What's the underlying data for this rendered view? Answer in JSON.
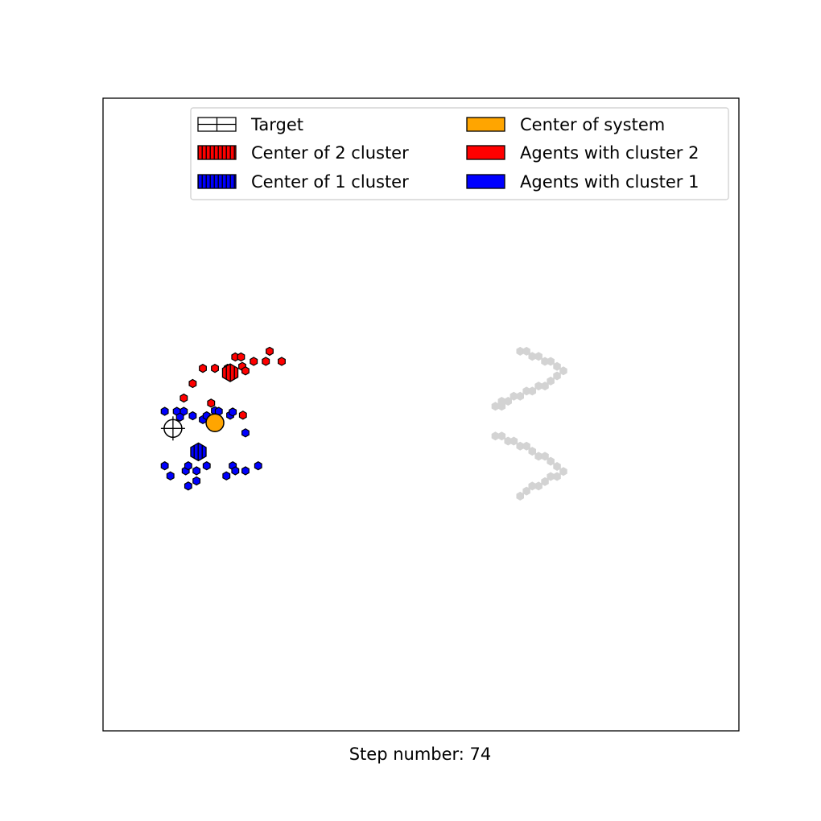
{
  "chart_data": {
    "type": "scatter",
    "title": "",
    "xlabel": "Step number: 74",
    "ylabel": "",
    "xlim": [
      0,
      100
    ],
    "ylim": [
      0,
      100
    ],
    "axis_ticks": "hidden",
    "grid": false,
    "legend_placement": "top-right",
    "legend": [
      {
        "label": "Target",
        "key": "target"
      },
      {
        "label": "Center of 2 cluster",
        "key": "center2"
      },
      {
        "label": "Center of 1 cluster",
        "key": "center1"
      },
      {
        "label": "Center of system",
        "key": "center_system"
      },
      {
        "label": "Agents with cluster 2",
        "key": "agents2"
      },
      {
        "label": "Agents with cluster 1",
        "key": "agents1"
      }
    ],
    "colors": {
      "cluster1": "#0000ff",
      "cluster2": "#ff0000",
      "center_system": "#ffa500",
      "obstacle": "#d3d3d3",
      "edge": "#000000"
    },
    "target": {
      "x": 11.0,
      "y": 47.8
    },
    "center_system": {
      "x": 17.6,
      "y": 48.7
    },
    "center_cluster_2": {
      "x": 20.0,
      "y": 56.6
    },
    "center_cluster_1": {
      "x": 15.0,
      "y": 44.1
    },
    "agents_cluster_2": [
      {
        "x": 26.2,
        "y": 60.0
      },
      {
        "x": 28.1,
        "y": 58.4
      },
      {
        "x": 20.8,
        "y": 59.1
      },
      {
        "x": 21.7,
        "y": 59.1
      },
      {
        "x": 25.6,
        "y": 58.4
      },
      {
        "x": 23.7,
        "y": 58.4
      },
      {
        "x": 21.9,
        "y": 57.6
      },
      {
        "x": 22.4,
        "y": 56.9
      },
      {
        "x": 17.6,
        "y": 57.3
      },
      {
        "x": 15.7,
        "y": 57.3
      },
      {
        "x": 19.6,
        "y": 57.3
      },
      {
        "x": 14.1,
        "y": 54.9
      },
      {
        "x": 12.7,
        "y": 52.6
      },
      {
        "x": 17.0,
        "y": 51.8
      },
      {
        "x": 22.0,
        "y": 49.9
      }
    ],
    "agents_cluster_1": [
      {
        "x": 9.7,
        "y": 50.5
      },
      {
        "x": 11.6,
        "y": 50.5
      },
      {
        "x": 12.7,
        "y": 50.5
      },
      {
        "x": 12.1,
        "y": 49.6
      },
      {
        "x": 14.1,
        "y": 49.8
      },
      {
        "x": 15.7,
        "y": 49.2
      },
      {
        "x": 16.3,
        "y": 49.8
      },
      {
        "x": 17.6,
        "y": 50.6
      },
      {
        "x": 18.2,
        "y": 50.5
      },
      {
        "x": 20.0,
        "y": 49.9
      },
      {
        "x": 20.4,
        "y": 50.4
      },
      {
        "x": 22.4,
        "y": 47.1
      },
      {
        "x": 9.7,
        "y": 41.9
      },
      {
        "x": 10.6,
        "y": 40.3
      },
      {
        "x": 13.0,
        "y": 41.1
      },
      {
        "x": 13.4,
        "y": 41.9
      },
      {
        "x": 14.7,
        "y": 41.1
      },
      {
        "x": 16.3,
        "y": 41.9
      },
      {
        "x": 14.7,
        "y": 39.5
      },
      {
        "x": 13.4,
        "y": 38.7
      },
      {
        "x": 20.4,
        "y": 41.9
      },
      {
        "x": 20.8,
        "y": 41.1
      },
      {
        "x": 22.4,
        "y": 41.1
      },
      {
        "x": 24.4,
        "y": 41.9
      },
      {
        "x": 19.4,
        "y": 40.3
      }
    ],
    "obstacles": [
      {
        "x": 65.6,
        "y": 60.0
      },
      {
        "x": 66.6,
        "y": 60.0
      },
      {
        "x": 67.5,
        "y": 59.2
      },
      {
        "x": 68.5,
        "y": 59.2
      },
      {
        "x": 69.5,
        "y": 58.4
      },
      {
        "x": 70.4,
        "y": 58.4
      },
      {
        "x": 71.4,
        "y": 57.6
      },
      {
        "x": 72.4,
        "y": 56.9
      },
      {
        "x": 71.4,
        "y": 56.1
      },
      {
        "x": 70.4,
        "y": 55.3
      },
      {
        "x": 69.5,
        "y": 54.5
      },
      {
        "x": 68.5,
        "y": 54.5
      },
      {
        "x": 67.5,
        "y": 53.7
      },
      {
        "x": 66.6,
        "y": 53.7
      },
      {
        "x": 65.6,
        "y": 52.9
      },
      {
        "x": 64.6,
        "y": 52.9
      },
      {
        "x": 63.7,
        "y": 52.1
      },
      {
        "x": 62.7,
        "y": 52.1
      },
      {
        "x": 61.7,
        "y": 51.3
      },
      {
        "x": 62.7,
        "y": 51.3
      },
      {
        "x": 61.7,
        "y": 46.6
      },
      {
        "x": 62.7,
        "y": 46.6
      },
      {
        "x": 63.7,
        "y": 45.8
      },
      {
        "x": 64.6,
        "y": 45.8
      },
      {
        "x": 65.6,
        "y": 45.0
      },
      {
        "x": 66.6,
        "y": 45.0
      },
      {
        "x": 67.5,
        "y": 44.2
      },
      {
        "x": 68.5,
        "y": 43.4
      },
      {
        "x": 69.5,
        "y": 43.4
      },
      {
        "x": 70.4,
        "y": 42.6
      },
      {
        "x": 71.4,
        "y": 41.8
      },
      {
        "x": 72.4,
        "y": 41.0
      },
      {
        "x": 71.4,
        "y": 40.2
      },
      {
        "x": 70.4,
        "y": 40.2
      },
      {
        "x": 69.5,
        "y": 39.4
      },
      {
        "x": 68.5,
        "y": 38.7
      },
      {
        "x": 67.5,
        "y": 38.7
      },
      {
        "x": 66.6,
        "y": 37.9
      },
      {
        "x": 65.6,
        "y": 37.1
      }
    ]
  }
}
